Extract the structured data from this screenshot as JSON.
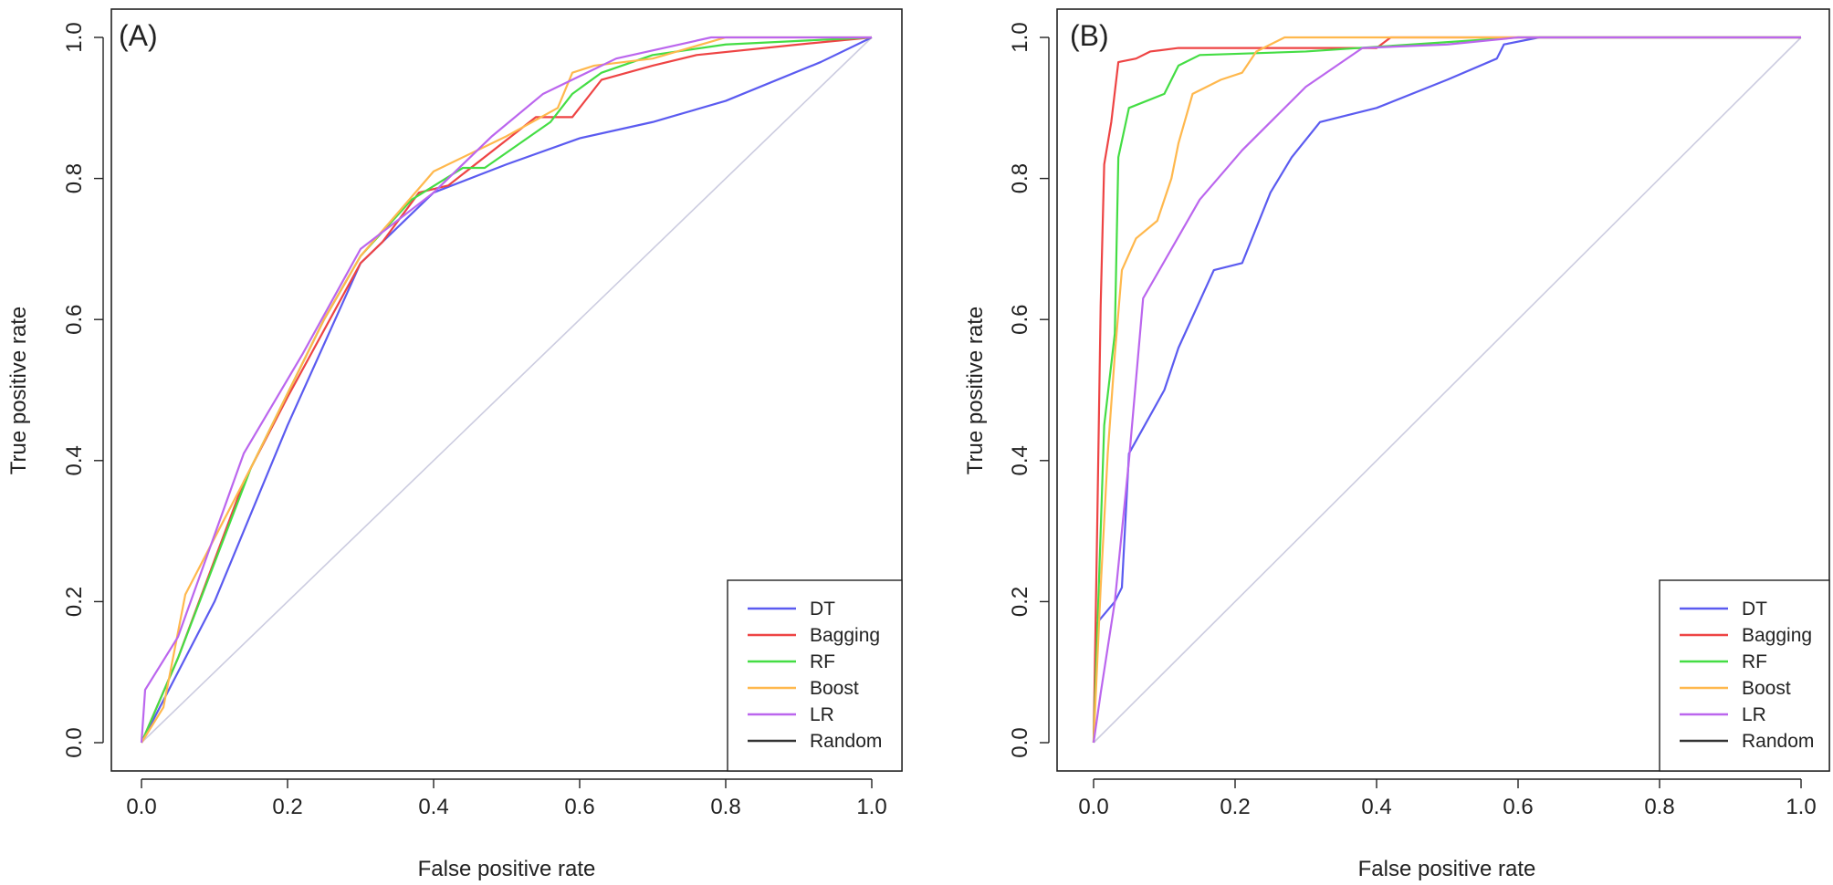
{
  "chart_data": [
    {
      "type": "line",
      "panel_label": "(A)",
      "xlabel": "False positive rate",
      "ylabel": "True positive rate",
      "xlim": [
        0,
        1
      ],
      "ylim": [
        0,
        1
      ],
      "xticks": [
        "0.0",
        "0.2",
        "0.4",
        "0.6",
        "0.8",
        "1.0"
      ],
      "yticks": [
        "0.0",
        "0.2",
        "0.4",
        "0.6",
        "0.8",
        "1.0"
      ],
      "legend_position": "bottom-right",
      "series": [
        {
          "name": "DT",
          "color": "#5b5bf0",
          "points": [
            [
              0,
              0
            ],
            [
              0.04,
              0.08
            ],
            [
              0.1,
              0.2
            ],
            [
              0.2,
              0.45
            ],
            [
              0.3,
              0.68
            ],
            [
              0.4,
              0.78
            ],
            [
              0.5,
              0.82
            ],
            [
              0.6,
              0.857
            ],
            [
              0.7,
              0.88
            ],
            [
              0.8,
              0.91
            ],
            [
              0.93,
              0.965
            ],
            [
              1,
              1
            ]
          ]
        },
        {
          "name": "Bagging",
          "color": "#ee4444",
          "points": [
            [
              0,
              0
            ],
            [
              0.05,
              0.12
            ],
            [
              0.14,
              0.37
            ],
            [
              0.2,
              0.49
            ],
            [
              0.3,
              0.68
            ],
            [
              0.33,
              0.71
            ],
            [
              0.38,
              0.78
            ],
            [
              0.42,
              0.79
            ],
            [
              0.54,
              0.887
            ],
            [
              0.59,
              0.887
            ],
            [
              0.63,
              0.94
            ],
            [
              0.7,
              0.96
            ],
            [
              0.76,
              0.975
            ],
            [
              0.9,
              0.99
            ],
            [
              1,
              1
            ]
          ]
        },
        {
          "name": "RF",
          "color": "#44dd44",
          "points": [
            [
              0,
              0
            ],
            [
              0.05,
              0.12
            ],
            [
              0.15,
              0.39
            ],
            [
              0.25,
              0.6
            ],
            [
              0.3,
              0.69
            ],
            [
              0.37,
              0.77
            ],
            [
              0.44,
              0.815
            ],
            [
              0.47,
              0.815
            ],
            [
              0.56,
              0.88
            ],
            [
              0.59,
              0.92
            ],
            [
              0.63,
              0.95
            ],
            [
              0.7,
              0.975
            ],
            [
              0.8,
              0.99
            ],
            [
              1,
              1
            ]
          ]
        },
        {
          "name": "Boost",
          "color": "#ffb84d",
          "points": [
            [
              0,
              0
            ],
            [
              0.03,
              0.05
            ],
            [
              0.06,
              0.21
            ],
            [
              0.15,
              0.39
            ],
            [
              0.25,
              0.6
            ],
            [
              0.3,
              0.69
            ],
            [
              0.4,
              0.81
            ],
            [
              0.5,
              0.86
            ],
            [
              0.57,
              0.9
            ],
            [
              0.59,
              0.95
            ],
            [
              0.62,
              0.96
            ],
            [
              0.7,
              0.97
            ],
            [
              0.8,
              1.0
            ],
            [
              1,
              1
            ]
          ]
        },
        {
          "name": "LR",
          "color": "#bb66ee",
          "points": [
            [
              0,
              0
            ],
            [
              0.005,
              0.075
            ],
            [
              0.05,
              0.15
            ],
            [
              0.14,
              0.41
            ],
            [
              0.22,
              0.55
            ],
            [
              0.3,
              0.7
            ],
            [
              0.4,
              0.78
            ],
            [
              0.48,
              0.86
            ],
            [
              0.55,
              0.92
            ],
            [
              0.65,
              0.97
            ],
            [
              0.78,
              1.0
            ],
            [
              1,
              1
            ]
          ]
        }
      ],
      "reference_line": {
        "name": "Random",
        "color": "#cccce0",
        "points": [
          [
            0,
            0
          ],
          [
            1,
            1
          ]
        ]
      },
      "legend": [
        {
          "name": "DT",
          "color": "#5b5bf0"
        },
        {
          "name": "Bagging",
          "color": "#ee4444"
        },
        {
          "name": "RF",
          "color": "#44dd44"
        },
        {
          "name": "Boost",
          "color": "#ffb84d"
        },
        {
          "name": "LR",
          "color": "#bb66ee"
        },
        {
          "name": "Random",
          "color": "#333333"
        }
      ]
    },
    {
      "type": "line",
      "panel_label": "(B)",
      "xlabel": "False positive rate",
      "ylabel": "True positive rate",
      "xlim": [
        0,
        1
      ],
      "ylim": [
        0,
        1
      ],
      "xticks": [
        "0.0",
        "0.2",
        "0.4",
        "0.6",
        "0.8",
        "1.0"
      ],
      "yticks": [
        "0.0",
        "0.2",
        "0.4",
        "0.6",
        "0.8",
        "1.0"
      ],
      "legend_position": "bottom-right",
      "series": [
        {
          "name": "DT",
          "color": "#5b5bf0",
          "points": [
            [
              0,
              0
            ],
            [
              0.005,
              0.17
            ],
            [
              0.03,
              0.2
            ],
            [
              0.04,
              0.22
            ],
            [
              0.05,
              0.41
            ],
            [
              0.1,
              0.5
            ],
            [
              0.12,
              0.56
            ],
            [
              0.17,
              0.67
            ],
            [
              0.21,
              0.68
            ],
            [
              0.25,
              0.78
            ],
            [
              0.28,
              0.83
            ],
            [
              0.32,
              0.88
            ],
            [
              0.4,
              0.9
            ],
            [
              0.5,
              0.94
            ],
            [
              0.57,
              0.97
            ],
            [
              0.58,
              0.99
            ],
            [
              0.63,
              1.0
            ],
            [
              1,
              1
            ]
          ]
        },
        {
          "name": "Bagging",
          "color": "#ee4444",
          "points": [
            [
              0,
              0
            ],
            [
              0.005,
              0.3
            ],
            [
              0.01,
              0.62
            ],
            [
              0.015,
              0.82
            ],
            [
              0.025,
              0.88
            ],
            [
              0.035,
              0.965
            ],
            [
              0.06,
              0.97
            ],
            [
              0.08,
              0.98
            ],
            [
              0.12,
              0.985
            ],
            [
              0.4,
              0.985
            ],
            [
              0.42,
              1.0
            ],
            [
              1,
              1
            ]
          ]
        },
        {
          "name": "RF",
          "color": "#44dd44",
          "points": [
            [
              0,
              0
            ],
            [
              0.005,
              0.15
            ],
            [
              0.015,
              0.45
            ],
            [
              0.03,
              0.58
            ],
            [
              0.035,
              0.83
            ],
            [
              0.05,
              0.9
            ],
            [
              0.1,
              0.92
            ],
            [
              0.12,
              0.96
            ],
            [
              0.15,
              0.975
            ],
            [
              0.3,
              0.98
            ],
            [
              0.45,
              0.99
            ],
            [
              0.6,
              1.0
            ],
            [
              1,
              1
            ]
          ]
        },
        {
          "name": "Boost",
          "color": "#ffb84d",
          "points": [
            [
              0,
              0
            ],
            [
              0.01,
              0.22
            ],
            [
              0.02,
              0.41
            ],
            [
              0.03,
              0.55
            ],
            [
              0.04,
              0.67
            ],
            [
              0.06,
              0.715
            ],
            [
              0.09,
              0.74
            ],
            [
              0.11,
              0.8
            ],
            [
              0.12,
              0.85
            ],
            [
              0.14,
              0.92
            ],
            [
              0.18,
              0.94
            ],
            [
              0.21,
              0.95
            ],
            [
              0.23,
              0.98
            ],
            [
              0.27,
              1.0
            ],
            [
              1,
              1
            ]
          ]
        },
        {
          "name": "LR",
          "color": "#bb66ee",
          "points": [
            [
              0,
              0
            ],
            [
              0.01,
              0.07
            ],
            [
              0.03,
              0.2
            ],
            [
              0.05,
              0.4
            ],
            [
              0.07,
              0.63
            ],
            [
              0.15,
              0.77
            ],
            [
              0.21,
              0.84
            ],
            [
              0.3,
              0.93
            ],
            [
              0.38,
              0.985
            ],
            [
              0.5,
              0.99
            ],
            [
              0.6,
              1.0
            ],
            [
              1,
              1
            ]
          ]
        }
      ],
      "reference_line": {
        "name": "Random",
        "color": "#cccce0",
        "points": [
          [
            0,
            0
          ],
          [
            1,
            1
          ]
        ]
      },
      "legend": [
        {
          "name": "DT",
          "color": "#5b5bf0"
        },
        {
          "name": "Bagging",
          "color": "#ee4444"
        },
        {
          "name": "RF",
          "color": "#44dd44"
        },
        {
          "name": "Boost",
          "color": "#ffb84d"
        },
        {
          "name": "LR",
          "color": "#bb66ee"
        },
        {
          "name": "Random",
          "color": "#333333"
        }
      ]
    }
  ]
}
